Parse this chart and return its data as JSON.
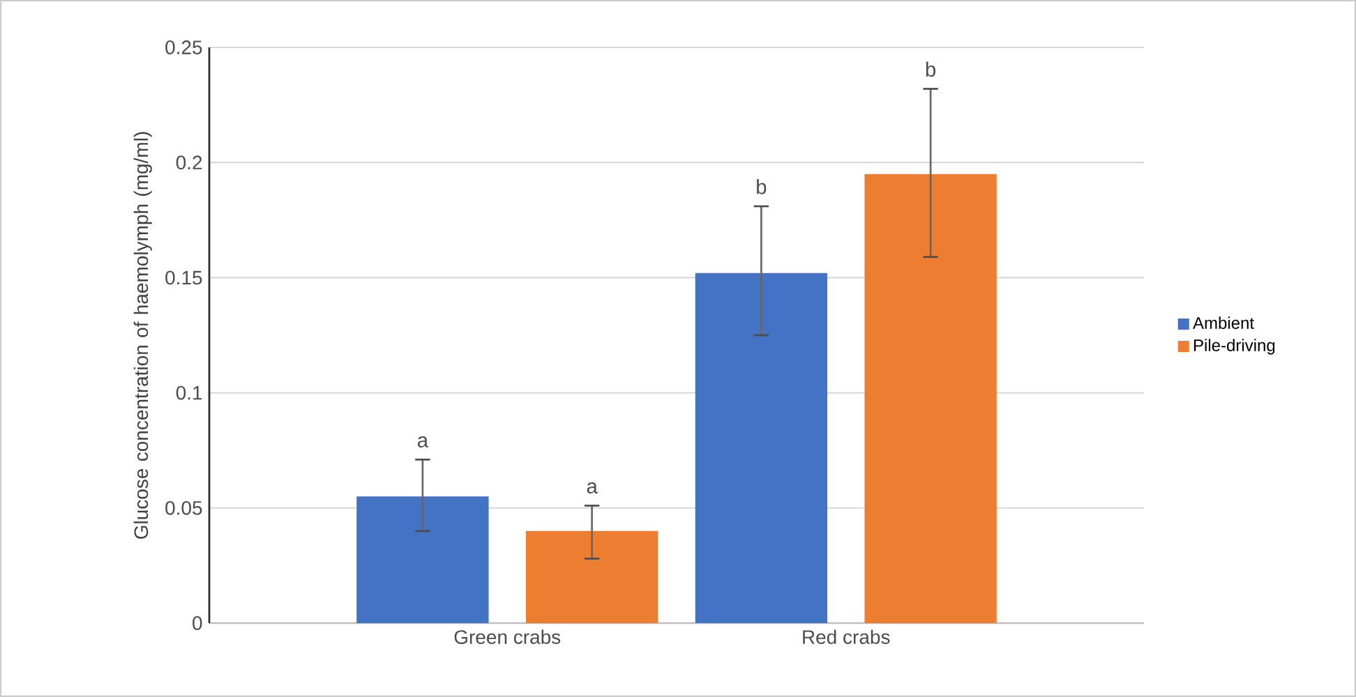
{
  "chart_data": {
    "type": "bar",
    "ylabel": "Glucose concentration of haemolymph (mg/ml)",
    "categories": [
      "Green crabs",
      "Red crabs"
    ],
    "series": [
      {
        "name": "Ambient",
        "color": "#4472c4",
        "values": [
          0.055,
          0.152
        ],
        "errors": [
          [
            0.04,
            0.071
          ],
          [
            0.125,
            0.181
          ]
        ]
      },
      {
        "name": "Pile-driving",
        "color": "#ed7d31",
        "values": [
          0.04,
          0.195
        ],
        "errors": [
          [
            0.028,
            0.051
          ],
          [
            0.159,
            0.232
          ]
        ]
      }
    ],
    "ylim": [
      0,
      0.25
    ],
    "yticks": [
      0,
      0.05,
      0.1,
      0.15,
      0.2,
      0.25
    ],
    "grid": "y",
    "legend": "right",
    "annotations": [
      "a",
      "a",
      "b",
      "b"
    ]
  }
}
